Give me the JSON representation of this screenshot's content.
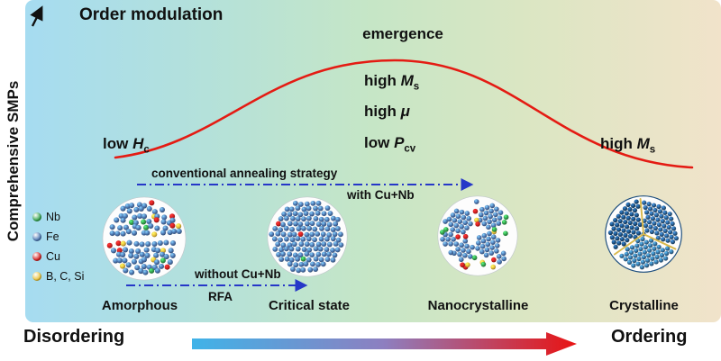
{
  "title": "Order modulation",
  "y_axis_label": "Comprehensive SMPs",
  "x_axis": {
    "left": "Disordering",
    "right": "Ordering"
  },
  "curve": {
    "peak_label": "emergence"
  },
  "labels": {
    "low_hc": {
      "pre": "low ",
      "sym": "H",
      "sub": "c"
    },
    "peak_lines": [
      {
        "pre": "high ",
        "sym": "M",
        "sub": "s"
      },
      {
        "pre": "high ",
        "sym": "μ",
        "sub": ""
      },
      {
        "pre": "low ",
        "sym": "P",
        "sub": "cv"
      }
    ],
    "right_ms": {
      "pre": "high ",
      "sym": "M",
      "sub": "s"
    }
  },
  "annotations": {
    "conventional": "conventional annealing strategy",
    "with_cunb": "with Cu+Nb",
    "without_cunb": "without Cu+Nb",
    "rfa": "RFA"
  },
  "legend": {
    "items": [
      {
        "label": "Nb",
        "color": "#35a34d"
      },
      {
        "label": "Fe",
        "color": "#4e79b4"
      },
      {
        "label": "Cu",
        "color": "#d42020"
      },
      {
        "label": "B, C, Si",
        "color": "#e9c23c"
      }
    ]
  },
  "stages": [
    {
      "label": "Amorphous",
      "type": "amorphous"
    },
    {
      "label": "Critical state",
      "type": "critical"
    },
    {
      "label": "Nanocrystalline",
      "type": "nanocrystalline"
    },
    {
      "label": "Crystalline",
      "type": "crystalline"
    }
  ],
  "colors": {
    "curve": "#e41b13",
    "annotation": "#2637c8",
    "axis_arrow": "#111111",
    "atom_blue": "#4e79b4",
    "atom_green": "#35a34d",
    "atom_red": "#d42020",
    "atom_yellow": "#e9c23c",
    "crystal_blues": [
      "#1d4e7d",
      "#35709f",
      "#2a5c8c"
    ],
    "grain_boundary": "#d9b94e",
    "xarrow_start": "#3fb3e8",
    "xarrow_mid": "#8d7fc0",
    "xarrow_end": "#e81414"
  }
}
